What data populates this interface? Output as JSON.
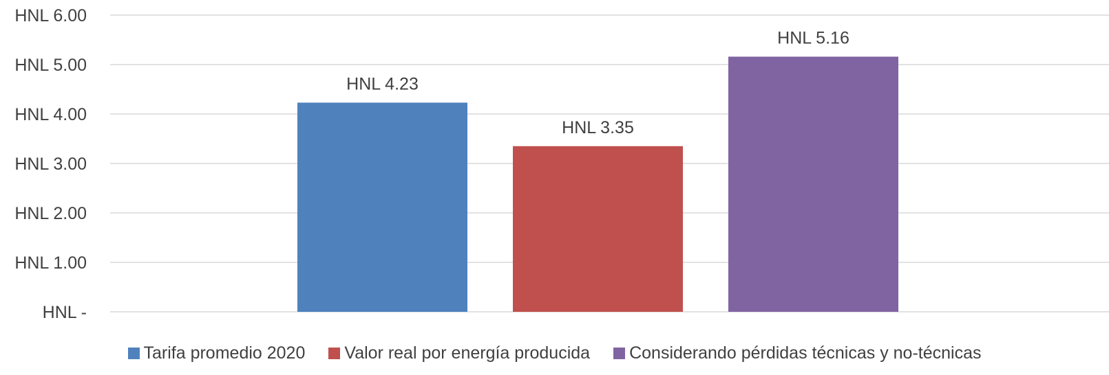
{
  "chart_data": {
    "type": "bar",
    "categories": [
      "Tarifa promedio 2020",
      "Valor real por energía producida",
      "Considerando pérdidas técnicas y no-técnicas"
    ],
    "values": [
      4.23,
      3.35,
      5.16
    ],
    "data_labels": [
      "HNL 4.23",
      "HNL 3.35",
      "HNL 5.16"
    ],
    "colors": [
      "#4f81bd",
      "#c0504d",
      "#8064a2"
    ],
    "yticks": [
      0,
      1,
      2,
      3,
      4,
      5,
      6
    ],
    "ytick_labels": [
      "HNL -",
      "HNL 1.00",
      "HNL 2.00",
      "HNL 3.00",
      "HNL 4.00",
      "HNL 5.00",
      "HNL 6.00"
    ],
    "ylim": [
      0,
      6
    ],
    "grid": true,
    "legend_position": "bottom",
    "title": "",
    "xlabel": "",
    "ylabel": ""
  }
}
